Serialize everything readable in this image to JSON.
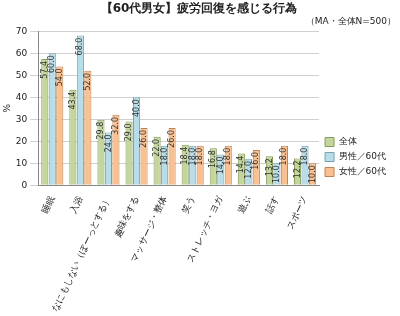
{
  "chart_data": {
    "type": "bar",
    "title": "【60代男女】疲労回復を感じる行為",
    "subtitle": "（MA・全体N=500）",
    "y_label": "%",
    "categories": [
      "睡眠",
      "入浴",
      "なにもしない（ぼーっとする）",
      "趣味をする",
      "マッサージ・整体",
      "笑う",
      "ストレッチ・ヨガ",
      "遊ぶ",
      "話す",
      "スポーツ"
    ],
    "series": [
      {
        "name": "全体",
        "color": "#c3d69b",
        "values": [
          57.4,
          43.4,
          29.8,
          29.0,
          22.0,
          18.4,
          16.8,
          14.4,
          13.2,
          12.2
        ],
        "value_labels": [
          "57.4",
          "43.4",
          "29.8",
          "29.0",
          "22.0",
          "18.4",
          "16.8",
          "14.4",
          "13.2",
          "12.2"
        ]
      },
      {
        "name": "男性／60代",
        "color": "#b7dee8",
        "values": [
          60.0,
          68.0,
          24.0,
          40.0,
          18.0,
          18.0,
          14.0,
          12.0,
          10.0,
          18.0
        ],
        "value_labels": [
          "60.0",
          "68.0",
          "24.0",
          "40.0",
          "18.0",
          "18.0",
          "14.0",
          "12.0",
          "10.0",
          "18.0"
        ]
      },
      {
        "name": "女性／60代",
        "color": "#fac090",
        "values": [
          54.0,
          52.0,
          32.0,
          26.0,
          26.0,
          18.0,
          18.0,
          16.0,
          18.0,
          10.0
        ],
        "value_labels": [
          "54.0",
          "52.0",
          "32.0",
          "26.0",
          "26.0",
          "18.0",
          "18.0",
          "16.0",
          "18.0",
          "10.0"
        ]
      }
    ],
    "ylim": [
      0,
      70
    ],
    "yticks": [
      0,
      10,
      20,
      30,
      40,
      50,
      60,
      70
    ],
    "grid": true,
    "legend": "right",
    "data_labels": true
  }
}
